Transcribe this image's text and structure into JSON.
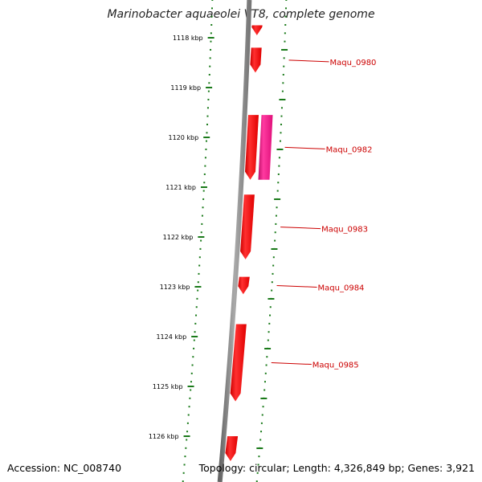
{
  "title": "Marinobacter aquaeolei VT8, complete genome",
  "footer": {
    "accession": "Accession: NC_008740",
    "summary": "Topology: circular; Length: 4,326,849 bp; Genes: 3,921"
  },
  "colors": {
    "backbone": "#888888",
    "tick": "#1a7a1a",
    "gene": "#ff0000",
    "gene_alt": "#ff1493",
    "label": "#cc0000"
  },
  "ticks": [
    {
      "kbp": 1118,
      "label": "1118 kbp"
    },
    {
      "kbp": 1119,
      "label": "1119 kbp"
    },
    {
      "kbp": 1120,
      "label": "1120 kbp"
    },
    {
      "kbp": 1121,
      "label": "1121 kbp"
    },
    {
      "kbp": 1122,
      "label": "1122 kbp"
    },
    {
      "kbp": 1123,
      "label": "1123 kbp"
    },
    {
      "kbp": 1124,
      "label": "1124 kbp"
    },
    {
      "kbp": 1125,
      "label": "1125 kbp"
    },
    {
      "kbp": 1126,
      "label": "1126 kbp"
    }
  ],
  "genes": [
    {
      "start": 1117.75,
      "end": 1117.95,
      "strand": "-",
      "color": "gene"
    },
    {
      "start": 1118.2,
      "end": 1118.7,
      "strand": "-",
      "label": "Maqu_0980",
      "color": "gene"
    },
    {
      "start": 1119.55,
      "end": 1120.85,
      "strand": "-",
      "color": "gene"
    },
    {
      "start": 1119.55,
      "end": 1120.85,
      "strand": "+",
      "label": "Maqu_0982",
      "color": "gene_alt",
      "track": 2
    },
    {
      "start": 1121.15,
      "end": 1122.45,
      "strand": "-",
      "label": "Maqu_0983",
      "color": "gene"
    },
    {
      "start": 1122.8,
      "end": 1123.15,
      "strand": "-",
      "label": "Maqu_0984",
      "color": "gene"
    },
    {
      "start": 1123.75,
      "end": 1125.3,
      "strand": "-",
      "label": "Maqu_0985",
      "color": "gene"
    },
    {
      "start": 1126.0,
      "end": 1126.5,
      "strand": "-",
      "color": "gene"
    }
  ]
}
